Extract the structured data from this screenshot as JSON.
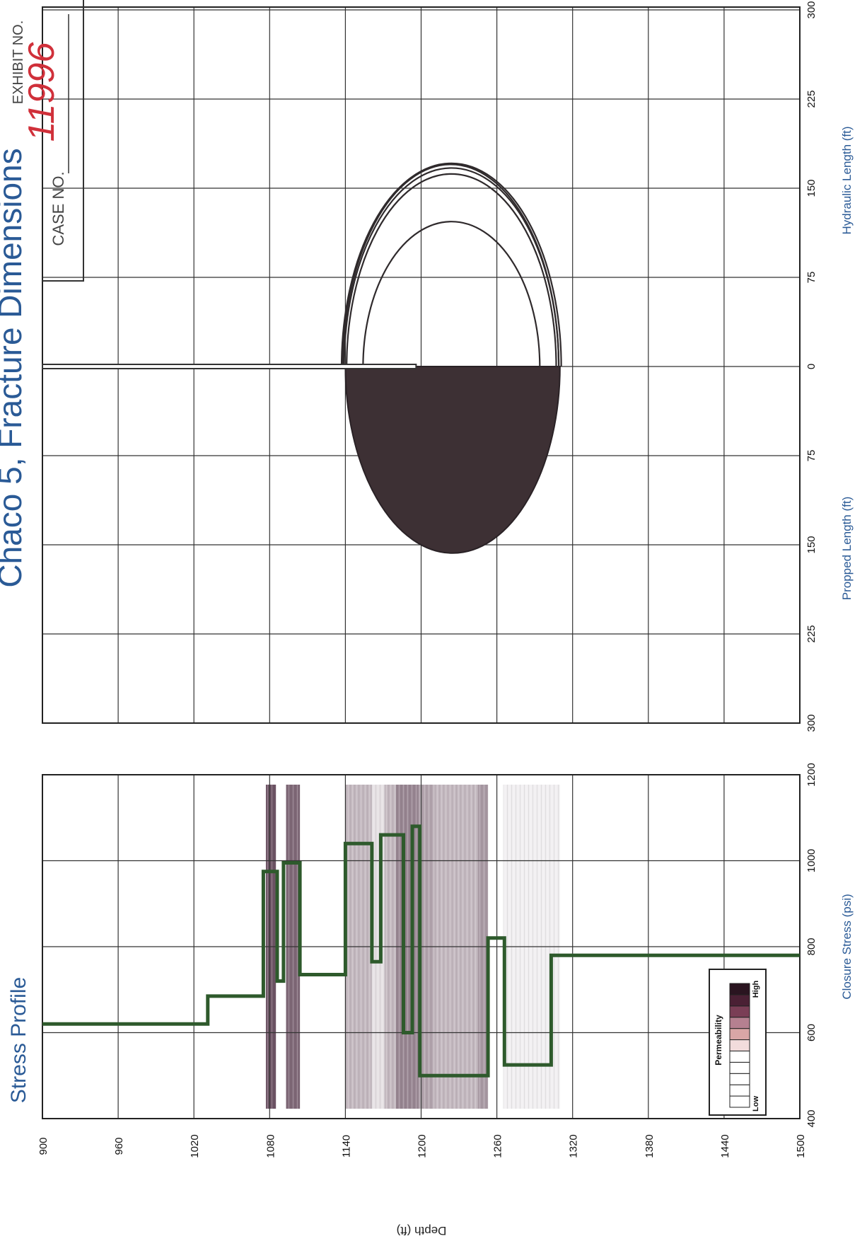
{
  "chart_data": [
    {
      "type": "line",
      "title": "Stress Profile",
      "xlabel": "Closure Stress (psi)",
      "ylabel": "Depth (ft)",
      "xlim": [
        400,
        1200
      ],
      "ylim": [
        900,
        1500
      ],
      "x_ticks": [
        "400",
        "600",
        "800",
        "1000",
        "1200"
      ],
      "y_ticks": [
        "900",
        "960",
        "1020",
        "1080",
        "1140",
        "1200",
        "1260",
        "1320",
        "1380",
        "1440",
        "1500"
      ],
      "grid": true,
      "series": [
        {
          "color": "#2e5a2c",
          "points": [
            [
              620,
              900
            ],
            [
              620,
              1031
            ],
            [
              685,
              1031
            ],
            [
              685,
              1075
            ],
            [
              975,
              1075
            ],
            [
              975,
              1086
            ],
            [
              720,
              1086
            ],
            [
              720,
              1091
            ],
            [
              995,
              1091
            ],
            [
              995,
              1104
            ],
            [
              735,
              1104
            ],
            [
              735,
              1140
            ],
            [
              1040,
              1140
            ],
            [
              1040,
              1161
            ],
            [
              765,
              1161
            ],
            [
              765,
              1168
            ],
            [
              1060,
              1168
            ],
            [
              1060,
              1186
            ],
            [
              600,
              1186
            ],
            [
              600,
              1193
            ],
            [
              1080,
              1193
            ],
            [
              1080,
              1199
            ],
            [
              500,
              1199
            ],
            [
              500,
              1253
            ],
            [
              820,
              1253
            ],
            [
              820,
              1266
            ],
            [
              525,
              1266
            ],
            [
              525,
              1303
            ],
            [
              780,
              1303
            ],
            [
              780,
              1500
            ]
          ]
        }
      ],
      "permeability_bands": [
        {
          "from": 1077,
          "to": 1085,
          "level": 0.85
        },
        {
          "from": 1093,
          "to": 1104,
          "level": 0.75
        },
        {
          "from": 1140,
          "to": 1161,
          "level": 0.35
        },
        {
          "from": 1161,
          "to": 1171,
          "level": 0.15
        },
        {
          "from": 1171,
          "to": 1180,
          "level": 0.35
        },
        {
          "from": 1180,
          "to": 1198,
          "level": 0.6
        },
        {
          "from": 1198,
          "to": 1210,
          "level": 0.45
        },
        {
          "from": 1210,
          "to": 1245,
          "level": 0.35
        },
        {
          "from": 1245,
          "to": 1253,
          "level": 0.5
        },
        {
          "from": 1265,
          "to": 1310,
          "level": 0.08
        }
      ],
      "legend": {
        "title": "Permeability",
        "low_label": "Low",
        "high_label": "High",
        "swatches": [
          "#ffffff",
          "#ffffff",
          "#ffffff",
          "#ffffff",
          "#ffffff",
          "#f2dcdc",
          "#d9a6a6",
          "#b58090",
          "#7a3e56",
          "#4a2034",
          "#2a1420"
        ],
        "position": "bottom-left"
      }
    },
    {
      "type": "area",
      "title": "Chaco 5, Fracture Dimensions",
      "xlabel_left": "Propped Length (ft)",
      "xlabel_right": "Hydraulic Length (ft)",
      "x_ticks_left": [
        "300",
        "225",
        "150",
        "75",
        "0"
      ],
      "x_ticks_right": [
        "75",
        "150",
        "225",
        "300"
      ],
      "xlim": [
        -300,
        300
      ],
      "grid": true,
      "propped": {
        "length": 157,
        "depth_top": 1140,
        "depth_bottom": 1310,
        "color": "#3d3034"
      },
      "hydraulic_contours": [
        {
          "length": 122,
          "depth_top": 1154,
          "depth_bottom": 1294
        },
        {
          "length": 162,
          "depth_top": 1141,
          "depth_bottom": 1307
        },
        {
          "length": 167,
          "depth_top": 1139,
          "depth_bottom": 1309
        },
        {
          "length": 170,
          "depth_top": 1138,
          "depth_bottom": 1309
        },
        {
          "length": 171,
          "depth_top": 1137,
          "depth_bottom": 1311
        }
      ],
      "wellbore_depth": [
        900,
        1196
      ]
    }
  ],
  "stamp": {
    "case_label": "CASE NO.",
    "exhibit_label": "EXHIBIT NO.",
    "handwritten": "11996"
  }
}
